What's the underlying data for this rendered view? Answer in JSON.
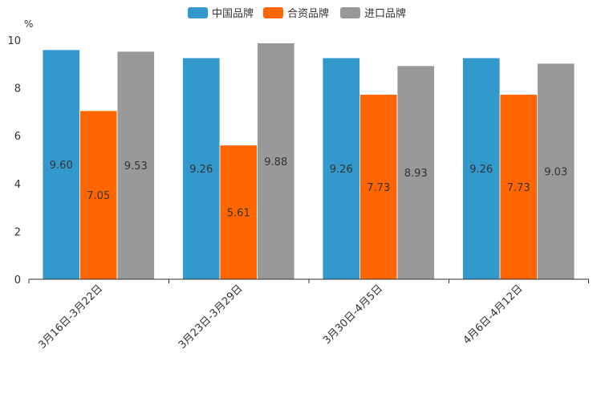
{
  "chart_data": {
    "type": "bar",
    "unit_label": "%",
    "categories": [
      "3月16日-3月22日",
      "3月23日-3月29日",
      "3月30日-4月5日",
      "4月6日-4月12日"
    ],
    "series": [
      {
        "name": "中国品牌",
        "color": "#3399cc",
        "values": [
          9.6,
          9.26,
          9.26,
          9.26
        ]
      },
      {
        "name": "合资品牌",
        "color": "#ff6600",
        "values": [
          7.05,
          5.61,
          7.73,
          7.73
        ]
      },
      {
        "name": "进口品牌",
        "color": "#999999",
        "values": [
          9.53,
          9.88,
          8.93,
          9.03
        ]
      }
    ],
    "ylim": [
      0,
      10
    ],
    "yticks": [
      0,
      2,
      4,
      6,
      8,
      10
    ],
    "legend_position": "top-center",
    "grid": false
  }
}
